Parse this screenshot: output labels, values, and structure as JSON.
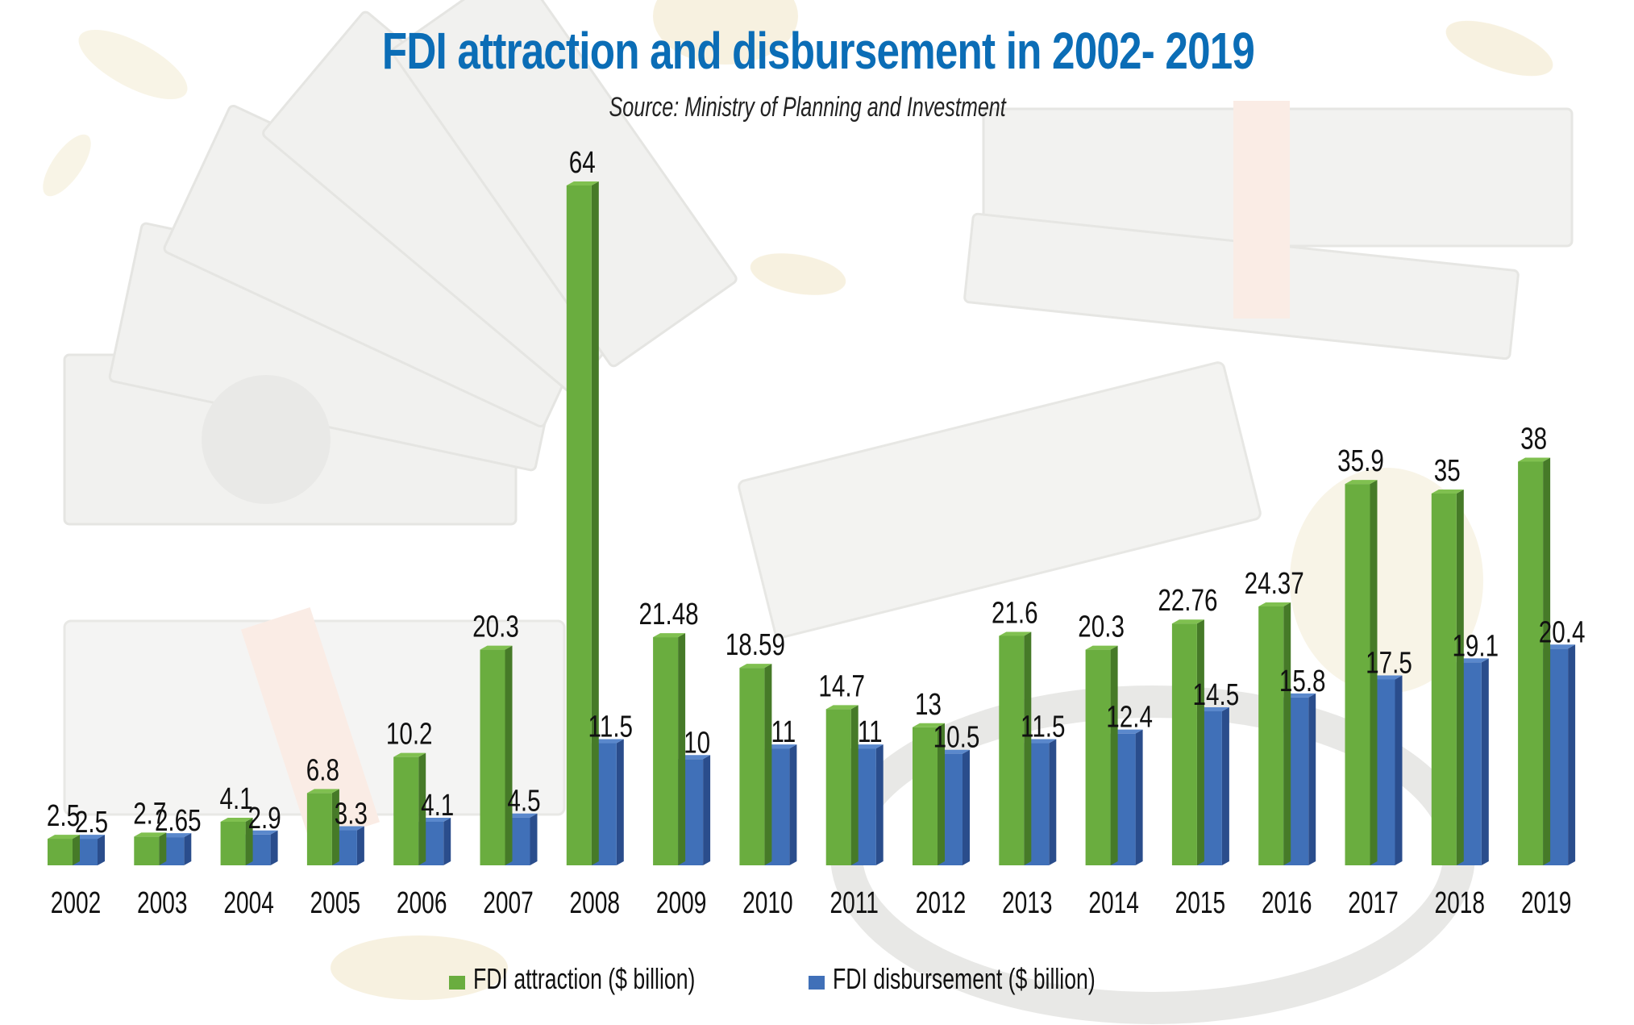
{
  "title": "FDI attraction and disbursement in 2002- 2019",
  "subtitle": "Source: Ministry of Planning and Investment",
  "colors": {
    "title": "#0b6db6",
    "attraction_front": "#6aad3f",
    "attraction_side": "#467a28",
    "attraction_top": "#80c050",
    "disbursement_front": "#4070b8",
    "disbursement_side": "#2a4d8c",
    "disbursement_top": "#5a88cc"
  },
  "legend": [
    {
      "label": "FDI attraction ($ billion)",
      "series": "attraction"
    },
    {
      "label": "FDI disbursement ($ billion)",
      "series": "disbursement"
    }
  ],
  "chart_data": {
    "type": "bar",
    "style": "3d-grouped",
    "title": "FDI attraction and disbursement in 2002- 2019",
    "subtitle": "Source: Ministry of Planning and Investment",
    "xlabel": "",
    "ylabel": "",
    "grid": false,
    "axes_visible": false,
    "legend_position": "bottom",
    "ylim": [
      0,
      64
    ],
    "categories": [
      "2002",
      "2003",
      "2004",
      "2005",
      "2006",
      "2007",
      "2008",
      "2009",
      "2010",
      "2011",
      "2012",
      "2013",
      "2014",
      "2015",
      "2016",
      "2017",
      "2018",
      "2019"
    ],
    "series": [
      {
        "name": "FDI attraction ($ billion)",
        "key": "attraction",
        "values": [
          2.5,
          2.7,
          4.1,
          6.8,
          10.2,
          20.3,
          64,
          21.48,
          18.59,
          14.7,
          13,
          21.6,
          20.3,
          22.76,
          24.37,
          35.9,
          35,
          38
        ],
        "labels": [
          "2.5",
          "2.7",
          "4.1",
          "6.8",
          "10.2",
          "20.3",
          "64",
          "21.48",
          "18.59",
          "14.7",
          "13",
          "21.6",
          "20.3",
          "22.76",
          "24.37",
          "35.9",
          "35",
          "38"
        ]
      },
      {
        "name": "FDI disbursement ($ billion)",
        "key": "disbursement",
        "values": [
          2.5,
          2.65,
          2.9,
          3.3,
          4.1,
          4.5,
          11.5,
          10,
          11,
          11,
          10.5,
          11.5,
          12.4,
          14.5,
          15.8,
          17.5,
          19.1,
          20.4
        ],
        "labels": [
          "2.5",
          "2.65",
          "2.9",
          "3.3",
          "4.1",
          "4.5",
          "11.5",
          "10",
          "11",
          "11",
          "10.5",
          "11.5",
          "12.4",
          "14.5",
          "15.8",
          "17.5",
          "19.1",
          "20.4"
        ]
      }
    ]
  }
}
